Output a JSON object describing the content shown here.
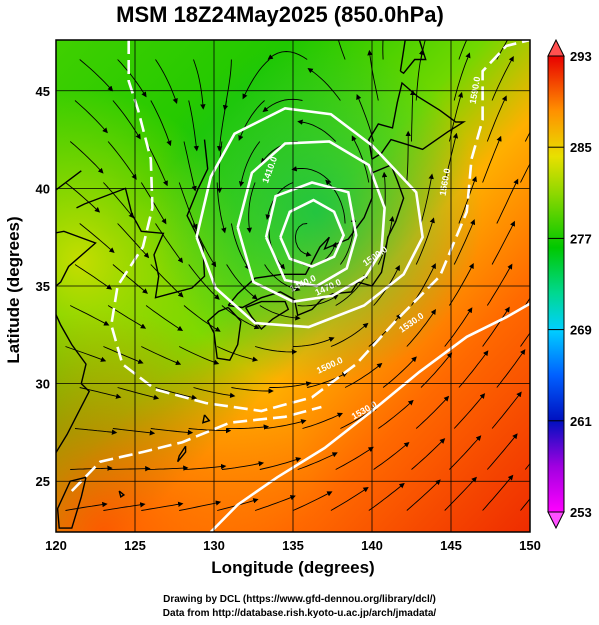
{
  "title": "MSM 18Z24May2025 (850.0hPa)",
  "xlabel": "Longitude (degrees)",
  "ylabel": "Latitude  (degrees)",
  "credits": {
    "line1": "Drawing by DCL (https://www.gfd-dennou.org/library/dcl/)",
    "line2": "Data from http://database.rish.kyoto-u.ac.jp/arch/jmadata/"
  },
  "map": {
    "lon_range": [
      120,
      150
    ],
    "lat_range": [
      22.4,
      47.6
    ],
    "lon_ticks": [
      120,
      125,
      130,
      135,
      140,
      145,
      150
    ],
    "lat_ticks": [
      25,
      30,
      35,
      40,
      45
    ],
    "grid": true
  },
  "colorbar": {
    "range": [
      253,
      293
    ],
    "tick_values": [
      253,
      261,
      269,
      277,
      285,
      293
    ],
    "tick_labels": [
      "253",
      "261",
      "269",
      "277",
      "285",
      "293"
    ],
    "colors": [
      "#ff00ff",
      "#a000d0",
      "#0000c0",
      "#0060ff",
      "#00c8ff",
      "#00d8a0",
      "#00c000",
      "#60d000",
      "#c8e000",
      "#ffd000",
      "#ff6000",
      "#e80000"
    ]
  },
  "contours": {
    "labels": [
      {
        "text": "1410.0",
        "lon": 133.7,
        "lat": 40.9,
        "rot": -70
      },
      {
        "text": "1440.0",
        "lon": 135.7,
        "lat": 35.0,
        "rot": -25
      },
      {
        "text": "1470.0",
        "lon": 137.3,
        "lat": 34.8,
        "rot": -25
      },
      {
        "text": "1500.0",
        "lon": 140.3,
        "lat": 36.4,
        "rot": -35
      },
      {
        "text": "1560.0",
        "lon": 144.8,
        "lat": 40.3,
        "rot": -80
      },
      {
        "text": "1530.0",
        "lon": 142.6,
        "lat": 33.0,
        "rot": -35
      },
      {
        "text": "1590.0",
        "lon": 146.7,
        "lat": 45.0,
        "rot": -80
      },
      {
        "text": "1500.0",
        "lon": 137.4,
        "lat": 30.8,
        "rot": -25
      },
      {
        "text": "1530.0",
        "lon": 139.6,
        "lat": 28.5,
        "rot": -30
      }
    ]
  }
}
